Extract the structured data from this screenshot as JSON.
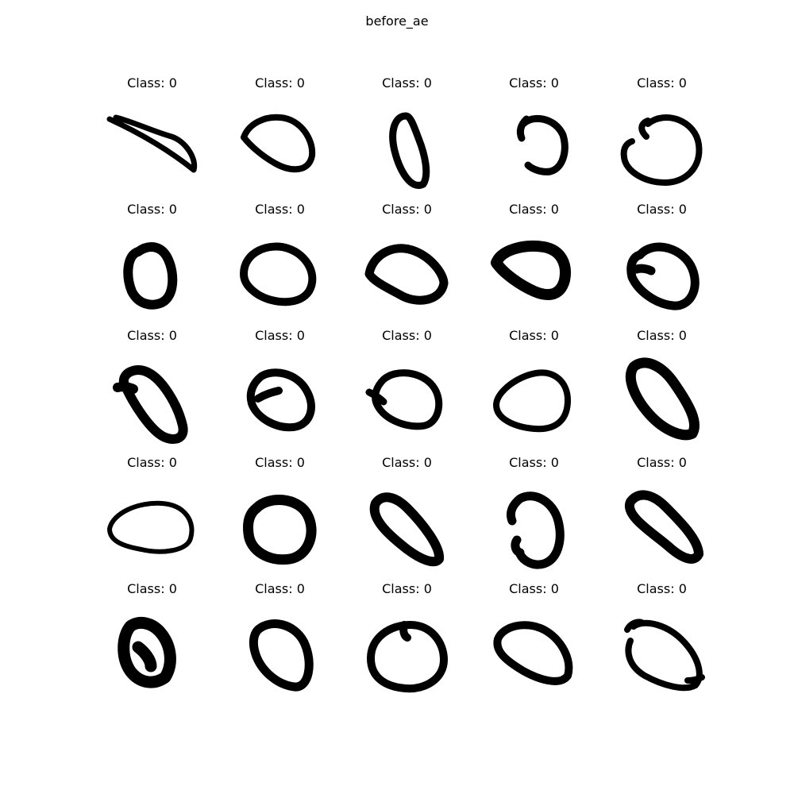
{
  "figure": {
    "title": "before_ae"
  },
  "panels": [
    {
      "title": "Class: 0",
      "icon": "handwritten-zero"
    },
    {
      "title": "Class: 0",
      "icon": "handwritten-zero"
    },
    {
      "title": "Class: 0",
      "icon": "handwritten-zero"
    },
    {
      "title": "Class: 0",
      "icon": "handwritten-zero"
    },
    {
      "title": "Class: 0",
      "icon": "handwritten-zero"
    },
    {
      "title": "Class: 0",
      "icon": "handwritten-zero"
    },
    {
      "title": "Class: 0",
      "icon": "handwritten-zero"
    },
    {
      "title": "Class: 0",
      "icon": "handwritten-zero"
    },
    {
      "title": "Class: 0",
      "icon": "handwritten-zero"
    },
    {
      "title": "Class: 0",
      "icon": "handwritten-zero"
    },
    {
      "title": "Class: 0",
      "icon": "handwritten-zero"
    },
    {
      "title": "Class: 0",
      "icon": "handwritten-zero"
    },
    {
      "title": "Class: 0",
      "icon": "handwritten-zero"
    },
    {
      "title": "Class: 0",
      "icon": "handwritten-zero"
    },
    {
      "title": "Class: 0",
      "icon": "handwritten-zero"
    },
    {
      "title": "Class: 0",
      "icon": "handwritten-zero"
    },
    {
      "title": "Class: 0",
      "icon": "handwritten-zero"
    },
    {
      "title": "Class: 0",
      "icon": "handwritten-zero"
    },
    {
      "title": "Class: 0",
      "icon": "handwritten-zero"
    },
    {
      "title": "Class: 0",
      "icon": "handwritten-zero"
    },
    {
      "title": "Class: 0",
      "icon": "handwritten-zero"
    },
    {
      "title": "Class: 0",
      "icon": "handwritten-zero"
    },
    {
      "title": "Class: 0",
      "icon": "handwritten-zero"
    },
    {
      "title": "Class: 0",
      "icon": "handwritten-zero"
    },
    {
      "title": "Class: 0",
      "icon": "handwritten-zero"
    }
  ]
}
